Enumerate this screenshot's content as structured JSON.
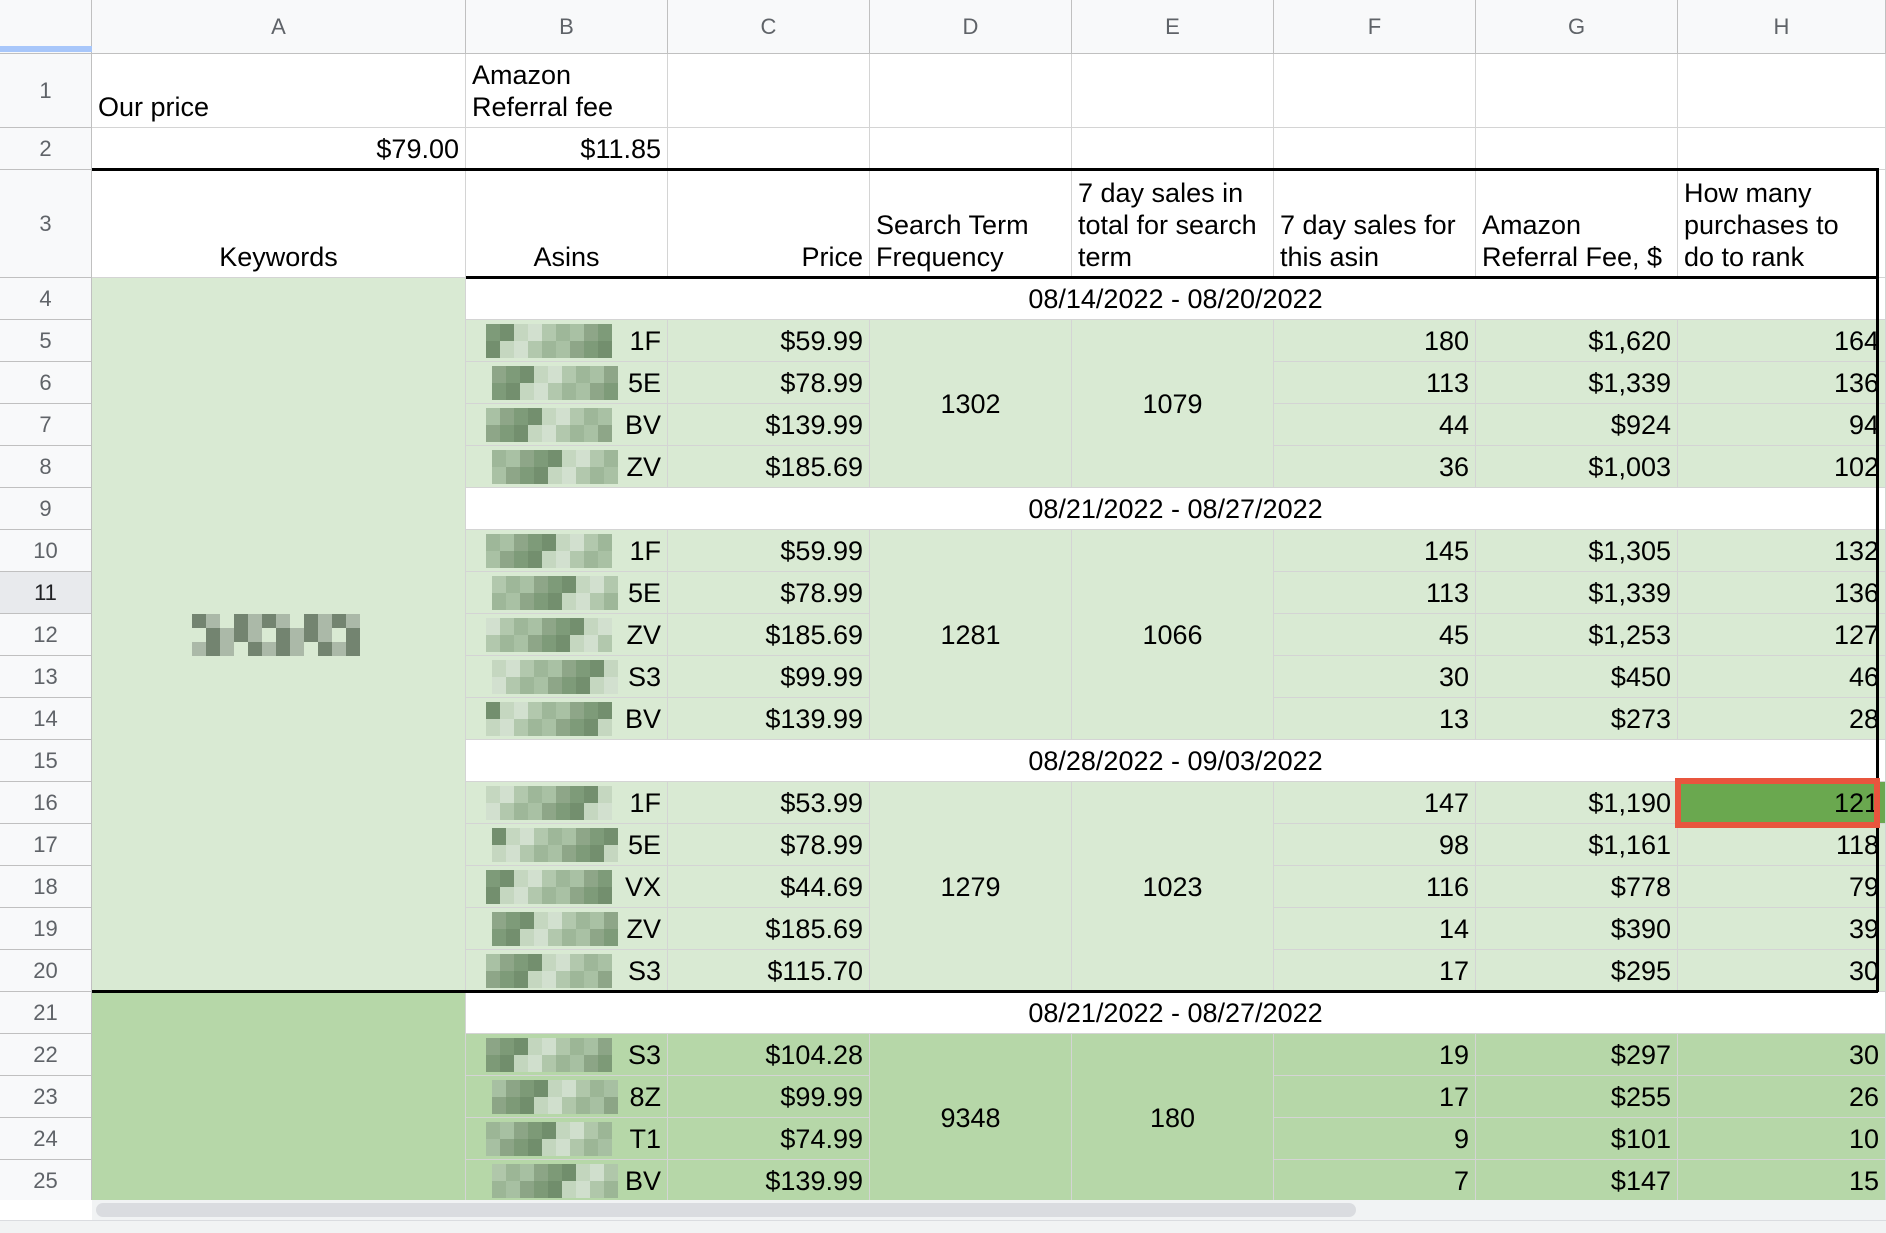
{
  "columns": [
    "A",
    "B",
    "C",
    "D",
    "E",
    "F",
    "G",
    "H"
  ],
  "rows": [
    "1",
    "2",
    "3",
    "4",
    "5",
    "6",
    "7",
    "8",
    "9",
    "10",
    "11",
    "12",
    "13",
    "14",
    "15",
    "16",
    "17",
    "18",
    "19",
    "20",
    "21",
    "22",
    "23",
    "24",
    "25"
  ],
  "top": {
    "our_price_label": "Our price",
    "referral_label_1": "Amazon",
    "referral_label_2": "Referral fee",
    "our_price": "$79.00",
    "referral_fee": "$11.85"
  },
  "headers": {
    "keywords": "Keywords",
    "asins": "Asins",
    "price": "Price",
    "stf_1": "Search Term",
    "stf_2": "Frequency",
    "total_1": "7 day sales in",
    "total_2": "total for search",
    "total_3": "term",
    "asin_1": "7 day sales for",
    "asin_2": "this asin",
    "fee_1": "Amazon",
    "fee_2": "Referral Fee, $",
    "rank_1": "How many",
    "rank_2": "purchases to",
    "rank_3": "do to rank"
  },
  "groups": [
    {
      "date": "08/14/2022 - 08/20/2022",
      "frequency": "1302",
      "total": "1079",
      "rows": [
        {
          "asin": "1F",
          "price": "$59.99",
          "sales": "180",
          "fee": "$1,620",
          "rank": "164"
        },
        {
          "asin": "5E",
          "price": "$78.99",
          "sales": "113",
          "fee": "$1,339",
          "rank": "136"
        },
        {
          "asin": "BV",
          "price": "$139.99",
          "sales": "44",
          "fee": "$924",
          "rank": "94"
        },
        {
          "asin": "ZV",
          "price": "$185.69",
          "sales": "36",
          "fee": "$1,003",
          "rank": "102"
        }
      ]
    },
    {
      "date": "08/21/2022 - 08/27/2022",
      "frequency": "1281",
      "total": "1066",
      "rows": [
        {
          "asin": "1F",
          "price": "$59.99",
          "sales": "145",
          "fee": "$1,305",
          "rank": "132"
        },
        {
          "asin": "5E",
          "price": "$78.99",
          "sales": "113",
          "fee": "$1,339",
          "rank": "136"
        },
        {
          "asin": "ZV",
          "price": "$185.69",
          "sales": "45",
          "fee": "$1,253",
          "rank": "127"
        },
        {
          "asin": "S3",
          "price": "$99.99",
          "sales": "30",
          "fee": "$450",
          "rank": "46"
        },
        {
          "asin": "BV",
          "price": "$139.99",
          "sales": "13",
          "fee": "$273",
          "rank": "28"
        }
      ]
    },
    {
      "date": "08/28/2022 - 09/03/2022",
      "frequency": "1279",
      "total": "1023",
      "rows": [
        {
          "asin": "1F",
          "price": "$53.99",
          "sales": "147",
          "fee": "$1,190",
          "rank": "121"
        },
        {
          "asin": "5E",
          "price": "$78.99",
          "sales": "98",
          "fee": "$1,161",
          "rank": "118"
        },
        {
          "asin": "VX",
          "price": "$44.69",
          "sales": "116",
          "fee": "$778",
          "rank": "79"
        },
        {
          "asin": "ZV",
          "price": "$185.69",
          "sales": "14",
          "fee": "$390",
          "rank": "39"
        },
        {
          "asin": "S3",
          "price": "$115.70",
          "sales": "17",
          "fee": "$295",
          "rank": "30"
        }
      ]
    },
    {
      "date": "08/21/2022 - 08/27/2022",
      "frequency": "9348",
      "total": "180",
      "rows": [
        {
          "asin": "S3",
          "price": "$104.28",
          "sales": "19",
          "fee": "$297",
          "rank": "30"
        },
        {
          "asin": "8Z",
          "price": "$99.99",
          "sales": "17",
          "fee": "$255",
          "rank": "26"
        },
        {
          "asin": "T1",
          "price": "$74.99",
          "sales": "9",
          "fee": "$101",
          "rank": "10"
        },
        {
          "asin": "BV",
          "price": "$139.99",
          "sales": "7",
          "fee": "$147",
          "rank": "15"
        }
      ]
    }
  ],
  "selected_cell": "H16",
  "colors": {
    "light_green": "#d9ead3",
    "mid_green": "#b6d7a8",
    "dark_green": "#6aa84f",
    "selection": "#e8553e"
  }
}
